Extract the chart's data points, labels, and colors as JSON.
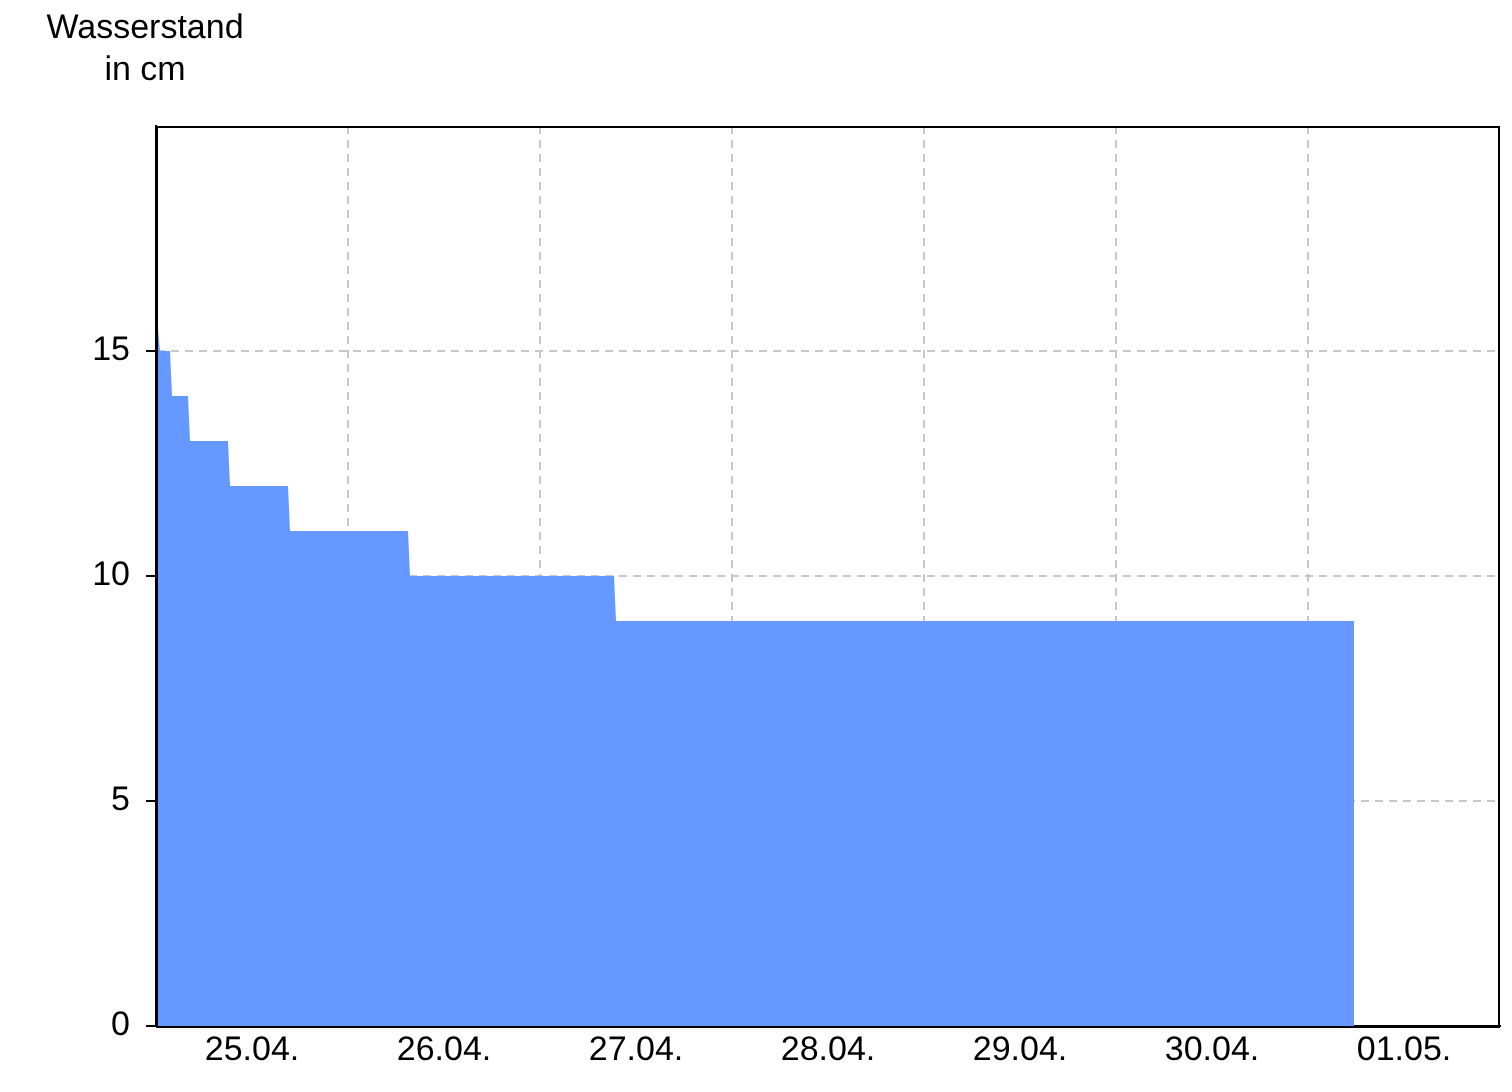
{
  "chart_data": {
    "type": "area",
    "ylabel": "Wasserstand in cm",
    "x": [
      "--04-25T00:00",
      "--04-25T00:30",
      "--04-25T01:45",
      "--04-25T02:00",
      "--04-25T04:00",
      "--04-25T04:15",
      "--04-25T09:00",
      "--04-25T09:15",
      "--04-25T16:30",
      "--04-25T16:45",
      "--04-26T07:30",
      "--04-26T07:45",
      "--04-27T09:15",
      "--04-27T09:30",
      "--05-01T05:45"
    ],
    "series": [
      {
        "color": "#6699ff",
        "values": [
          16,
          15,
          15,
          14,
          14,
          13,
          13,
          12,
          12,
          11,
          11,
          10,
          10,
          9,
          9
        ]
      }
    ],
    "xlim": [
      "--04-25T00:00",
      "--05-02T00:00"
    ],
    "xticks": [
      {
        "value": "--04-25T12:00",
        "label": "25.04."
      },
      {
        "value": "--04-26T00:00",
        "label": null
      },
      {
        "value": "--04-26T12:00",
        "label": "26.04."
      },
      {
        "value": "--04-27T00:00",
        "label": null
      },
      {
        "value": "--04-27T12:00",
        "label": "27.04."
      },
      {
        "value": "--04-28T00:00",
        "label": null
      },
      {
        "value": "--04-28T12:00",
        "label": "28.04."
      },
      {
        "value": "--04-29T00:00",
        "label": null
      },
      {
        "value": "--04-29T12:00",
        "label": "29.04."
      },
      {
        "value": "--04-30T00:00",
        "label": null
      },
      {
        "value": "--04-30T12:00",
        "label": "30.04."
      },
      {
        "value": "--05-01T00:00",
        "label": null
      },
      {
        "value": "--05-01T12:00",
        "label": "01.05."
      }
    ],
    "ylim": [
      0,
      20
    ],
    "yticks": [
      0,
      5,
      10,
      15
    ],
    "grid": true,
    "legend": false
  }
}
